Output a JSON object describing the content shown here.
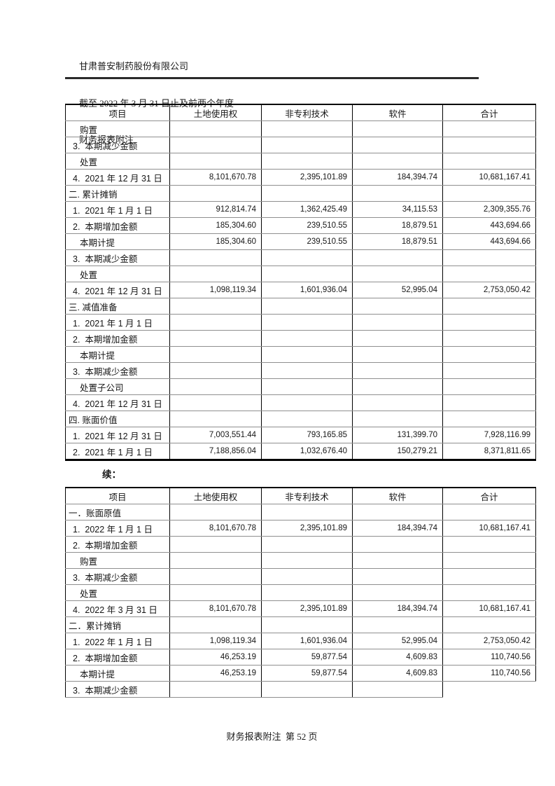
{
  "header": {
    "company": "甘肃普安制药股份有限公司",
    "period": "截至 2022 年 3 月 31 日止及前两个年度",
    "doc_title": "财务报表附注"
  },
  "continued_label": "续：",
  "footer": "财务报表附注  第 52 页",
  "tables": [
    {
      "headers": [
        "项目",
        "土地使用权",
        "非专利技术",
        "软件",
        "合计"
      ],
      "rows": [
        {
          "label": "购置",
          "indent": "sub",
          "values": [
            "",
            "",
            "",
            ""
          ]
        },
        {
          "label": "3.  本期减少金额",
          "indent": "num",
          "values": [
            "",
            "",
            "",
            ""
          ]
        },
        {
          "label": "处置",
          "indent": "sub",
          "values": [
            "",
            "",
            "",
            ""
          ]
        },
        {
          "label": "4.  2021 年 12 月 31 日",
          "indent": "num",
          "values": [
            "8,101,670.78",
            "2,395,101.89",
            "184,394.74",
            "10,681,167.41"
          ]
        },
        {
          "label": "二. 累计摊销",
          "indent": "section",
          "values": [
            "",
            "",
            "",
            ""
          ]
        },
        {
          "label": "1.  2021 年 1 月 1 日",
          "indent": "num",
          "values": [
            "912,814.74",
            "1,362,425.49",
            "34,115.53",
            "2,309,355.76"
          ]
        },
        {
          "label": "2.  本期增加金额",
          "indent": "num",
          "values": [
            "185,304.60",
            "239,510.55",
            "18,879.51",
            "443,694.66"
          ]
        },
        {
          "label": "本期计提",
          "indent": "sub",
          "values": [
            "185,304.60",
            "239,510.55",
            "18,879.51",
            "443,694.66"
          ]
        },
        {
          "label": "3.  本期减少金额",
          "indent": "num",
          "values": [
            "",
            "",
            "",
            ""
          ]
        },
        {
          "label": "处置",
          "indent": "sub",
          "values": [
            "",
            "",
            "",
            ""
          ]
        },
        {
          "label": "4.  2021 年 12 月 31 日",
          "indent": "num",
          "values": [
            "1,098,119.34",
            "1,601,936.04",
            "52,995.04",
            "2,753,050.42"
          ]
        },
        {
          "label": "三. 减值准备",
          "indent": "section",
          "values": [
            "",
            "",
            "",
            ""
          ]
        },
        {
          "label": "1.  2021 年 1 月 1 日",
          "indent": "num",
          "values": [
            "",
            "",
            "",
            ""
          ]
        },
        {
          "label": "2.  本期增加金额",
          "indent": "num",
          "values": [
            "",
            "",
            "",
            ""
          ]
        },
        {
          "label": "本期计提",
          "indent": "sub",
          "values": [
            "",
            "",
            "",
            ""
          ]
        },
        {
          "label": "3.  本期减少金额",
          "indent": "num",
          "values": [
            "",
            "",
            "",
            ""
          ]
        },
        {
          "label": "处置子公司",
          "indent": "sub",
          "values": [
            "",
            "",
            "",
            ""
          ]
        },
        {
          "label": "4.  2021 年 12 月 31 日",
          "indent": "num",
          "values": [
            "",
            "",
            "",
            ""
          ]
        },
        {
          "label": "四. 账面价值",
          "indent": "section",
          "values": [
            "",
            "",
            "",
            ""
          ]
        },
        {
          "label": "1.  2021 年 12 月 31 日",
          "indent": "num",
          "values": [
            "7,003,551.44",
            "793,165.85",
            "131,399.70",
            "7,928,116.99"
          ]
        },
        {
          "label": "2.  2021 年 1 月 1 日",
          "indent": "num",
          "values": [
            "7,188,856.04",
            "1,032,676.40",
            "150,279.21",
            "8,371,811.65"
          ]
        }
      ]
    },
    {
      "headers": [
        "项目",
        "土地使用权",
        "非专利技术",
        "软件",
        "合计"
      ],
      "rows": [
        {
          "label": "一．账面原值",
          "indent": "section",
          "values": [
            "",
            "",
            "",
            ""
          ]
        },
        {
          "label": "1.  2022 年 1 月 1 日",
          "indent": "num",
          "values": [
            "8,101,670.78",
            "2,395,101.89",
            "184,394.74",
            "10,681,167.41"
          ]
        },
        {
          "label": "2.  本期增加金额",
          "indent": "num",
          "values": [
            "",
            "",
            "",
            ""
          ]
        },
        {
          "label": "购置",
          "indent": "sub",
          "values": [
            "",
            "",
            "",
            ""
          ]
        },
        {
          "label": "3.  本期减少金额",
          "indent": "num",
          "values": [
            "",
            "",
            "",
            ""
          ]
        },
        {
          "label": "处置",
          "indent": "sub",
          "values": [
            "",
            "",
            "",
            ""
          ]
        },
        {
          "label": "4.  2022 年 3 月 31 日",
          "indent": "num",
          "values": [
            "8,101,670.78",
            "2,395,101.89",
            "184,394.74",
            "10,681,167.41"
          ]
        },
        {
          "label": "二．累计摊销",
          "indent": "section",
          "values": [
            "",
            "",
            "",
            ""
          ]
        },
        {
          "label": "1.  2022 年 1 月 1 日",
          "indent": "num",
          "values": [
            "1,098,119.34",
            "1,601,936.04",
            "52,995.04",
            "2,753,050.42"
          ]
        },
        {
          "label": "2.  本期增加金额",
          "indent": "num",
          "values": [
            "46,253.19",
            "59,877.54",
            "4,609.83",
            "110,740.56"
          ]
        },
        {
          "label": "本期计提",
          "indent": "sub",
          "values": [
            "46,253.19",
            "59,877.54",
            "4,609.83",
            "110,740.56"
          ]
        },
        {
          "label": "3.  本期减少金额",
          "indent": "num",
          "values": [
            "",
            "",
            "",
            ""
          ],
          "partial": true
        }
      ]
    }
  ]
}
